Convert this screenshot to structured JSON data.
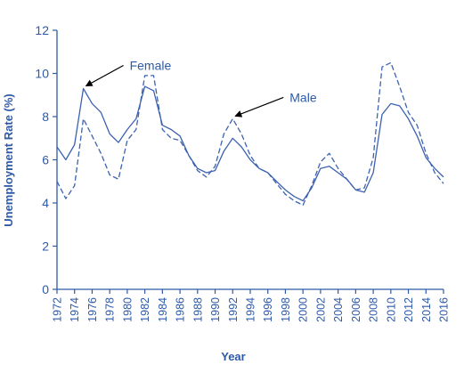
{
  "chart_data": {
    "type": "line",
    "xlabel": "Year",
    "ylabel": "Unemployment Rate (%)",
    "xlim": [
      1972,
      2016
    ],
    "ylim": [
      0,
      12
    ],
    "yticks": [
      0,
      2,
      4,
      6,
      8,
      10,
      12
    ],
    "xticks": [
      1972,
      1974,
      1976,
      1978,
      1980,
      1982,
      1984,
      1986,
      1988,
      1990,
      1992,
      1994,
      1996,
      1998,
      2000,
      2002,
      2004,
      2006,
      2008,
      2010,
      2012,
      2014,
      2016
    ],
    "grid": false,
    "legend": "none",
    "x": [
      1972,
      1973,
      1974,
      1975,
      1976,
      1977,
      1978,
      1979,
      1980,
      1981,
      1982,
      1983,
      1984,
      1985,
      1986,
      1987,
      1988,
      1989,
      1990,
      1991,
      1992,
      1993,
      1994,
      1995,
      1996,
      1997,
      1998,
      1999,
      2000,
      2001,
      2002,
      2003,
      2004,
      2005,
      2006,
      2007,
      2008,
      2009,
      2010,
      2011,
      2012,
      2013,
      2014,
      2015,
      2016
    ],
    "series": [
      {
        "name": "Female",
        "style": "solid",
        "values": [
          6.6,
          6.0,
          6.7,
          9.3,
          8.6,
          8.2,
          7.2,
          6.8,
          7.4,
          7.9,
          9.4,
          9.2,
          7.6,
          7.4,
          7.1,
          6.2,
          5.6,
          5.4,
          5.5,
          6.4,
          7.0,
          6.6,
          6.0,
          5.6,
          5.4,
          5.0,
          4.6,
          4.3,
          4.1,
          4.7,
          5.6,
          5.7,
          5.4,
          5.1,
          4.6,
          4.5,
          5.4,
          8.1,
          8.6,
          8.5,
          7.9,
          7.1,
          6.1,
          5.6,
          5.2
        ]
      },
      {
        "name": "Male",
        "style": "dashed",
        "values": [
          5.0,
          4.2,
          4.8,
          7.9,
          7.1,
          6.3,
          5.3,
          5.1,
          6.9,
          7.4,
          9.9,
          9.9,
          7.4,
          7.0,
          6.9,
          6.2,
          5.5,
          5.2,
          5.7,
          7.2,
          7.9,
          7.2,
          6.2,
          5.6,
          5.4,
          4.9,
          4.4,
          4.1,
          3.9,
          4.8,
          5.9,
          6.3,
          5.6,
          5.1,
          4.6,
          4.7,
          6.1,
          10.3,
          10.5,
          9.4,
          8.2,
          7.6,
          6.3,
          5.4,
          4.9
        ]
      }
    ],
    "annotations": [
      {
        "text": "Female",
        "target_x": 1975,
        "target_y": 9.3
      },
      {
        "text": "Male",
        "target_x": 1992,
        "target_y": 7.9
      }
    ],
    "line_color": "#3d62b0",
    "axis_color": "#2d5aa8"
  }
}
